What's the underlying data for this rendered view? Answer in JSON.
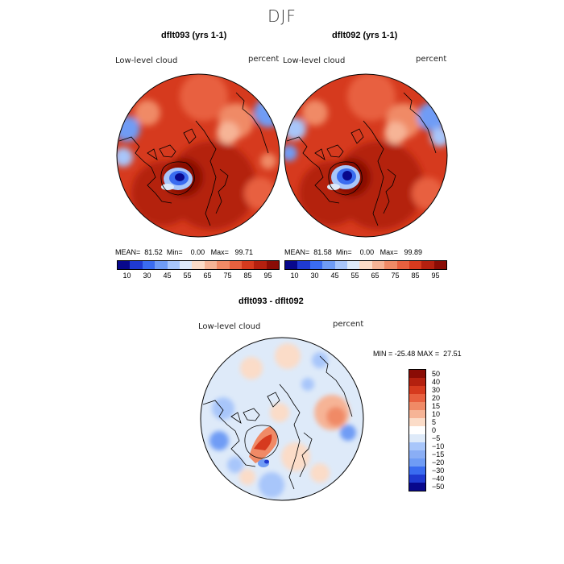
{
  "figure": {
    "season": "DJF"
  },
  "panels": [
    {
      "title": "dflt093 (yrs 1-1)",
      "variable": "Low-level cloud",
      "units": "percent",
      "mean_label": "MEAN=",
      "mean": "81.52",
      "min_label": "Min=",
      "min": "0.00",
      "max_label": "Max=",
      "max": "99.71",
      "colorbar_ticks": [
        "10",
        "30",
        "45",
        "55",
        "65",
        "75",
        "85",
        "95"
      ]
    },
    {
      "title": "dflt092 (yrs 1-1)",
      "variable": "Low-level cloud",
      "units": "percent",
      "mean_label": "MEAN=",
      "mean": "81.58",
      "min_label": "Min=",
      "min": "0.00",
      "max_label": "Max=",
      "max": "99.89",
      "colorbar_ticks": [
        "10",
        "30",
        "45",
        "55",
        "65",
        "75",
        "85",
        "95"
      ]
    }
  ],
  "diff": {
    "title": "dflt093 - dflt092",
    "variable": "Low-level cloud",
    "units": "percent",
    "min_label": "MIN =",
    "min": "-25.48",
    "max_label": "MAX =",
    "max": "27.51",
    "colorbar_ticks": [
      "50",
      "40",
      "30",
      "20",
      "15",
      "10",
      "5",
      "0",
      "−5",
      "−10",
      "−15",
      "−20",
      "−30",
      "−40",
      "−50"
    ]
  },
  "colors": {
    "abs_scale": [
      "#08088c",
      "#1f3ad1",
      "#3a6cf0",
      "#6f9cf5",
      "#a8c6fa",
      "#deeaf9",
      "#fbdcc8",
      "#f6b496",
      "#f08a66",
      "#e8603f",
      "#d63a1e",
      "#b4200f",
      "#8a0c05"
    ],
    "diff_scale": [
      "#8a0c05",
      "#b4200f",
      "#d63a1e",
      "#e8603f",
      "#f08a66",
      "#f6b496",
      "#fbdcc8",
      "#ffffff",
      "#deeaf9",
      "#a8c6fa",
      "#8aaef5",
      "#6f9cf5",
      "#3a6cf0",
      "#1f3ad1",
      "#08088c"
    ],
    "land_line": "#000000"
  }
}
